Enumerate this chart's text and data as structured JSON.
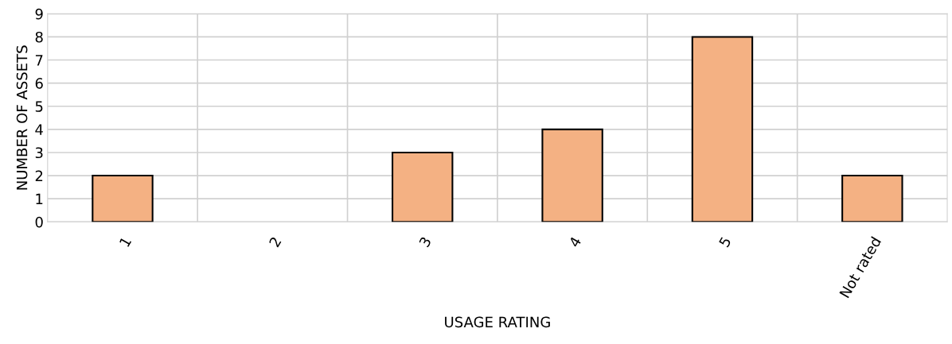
{
  "chart_data": {
    "type": "bar",
    "xlabel": "USAGE RATING",
    "ylabel": "NUMBER OF ASSETS",
    "categories": [
      "1",
      "2",
      "3",
      "4",
      "5",
      "Not rated"
    ],
    "values": [
      2,
      0,
      3,
      4,
      8,
      2
    ],
    "color": "#f4b183",
    "ylim": [
      0,
      9
    ],
    "yticks": [
      0,
      1,
      2,
      3,
      4,
      5,
      6,
      7,
      8,
      9
    ],
    "grid": true
  }
}
